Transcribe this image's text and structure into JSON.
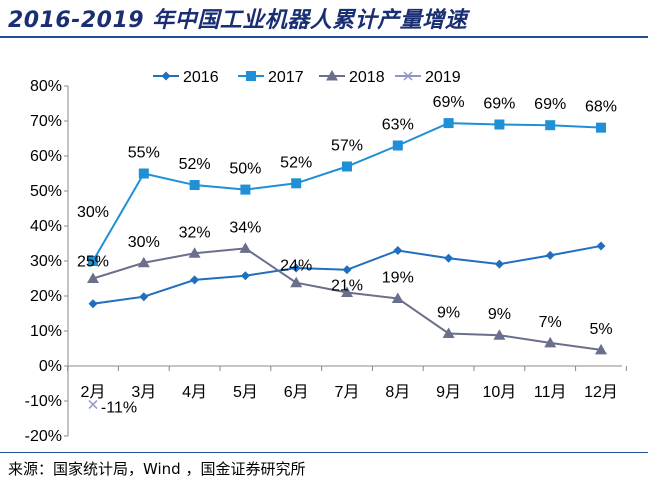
{
  "title": "2016-2019 年中国工业机器人累计产量增速",
  "source": "来源：国家统计局，Wind ，国金证券研究所",
  "chart_data": {
    "type": "line",
    "categories": [
      "2月",
      "3月",
      "4月",
      "5月",
      "6月",
      "7月",
      "8月",
      "9月",
      "10月",
      "11月",
      "12月"
    ],
    "ylim": [
      -20,
      80
    ],
    "yticks": [
      "80%",
      "70%",
      "60%",
      "50%",
      "40%",
      "30%",
      "20%",
      "10%",
      "0%",
      "-10%",
      "-20%"
    ],
    "ytick_values": [
      80,
      70,
      60,
      50,
      40,
      30,
      20,
      10,
      0,
      -10,
      -20
    ],
    "legend_position": "top",
    "grid": false,
    "series": [
      {
        "name": "2016",
        "color": "#1f6fbf",
        "marker": "diamond",
        "values": [
          17.8,
          19.8,
          24.6,
          25.8,
          28.0,
          27.5,
          33.0,
          30.8,
          29.1,
          31.6,
          34.3
        ],
        "labels": [
          null,
          null,
          null,
          null,
          null,
          null,
          null,
          null,
          null,
          null,
          null
        ]
      },
      {
        "name": "2017",
        "color": "#1f8fd6",
        "marker": "square",
        "values": [
          30,
          55,
          51.7,
          50.4,
          52.2,
          57,
          63,
          69.4,
          69,
          68.8,
          68.1
        ],
        "labels": [
          "30%",
          "55%",
          "52%",
          "50%",
          "52%",
          "57%",
          "63%",
          "69%",
          "69%",
          "69%",
          "68%"
        ]
      },
      {
        "name": "2018",
        "color": "#6a6f8c",
        "marker": "triangle",
        "values": [
          25,
          29.5,
          32.2,
          33.6,
          23.8,
          21,
          19.3,
          9.3,
          8.8,
          6.6,
          4.6
        ],
        "labels": [
          "25%",
          "30%",
          "32%",
          "34%",
          "24%",
          "21%",
          "19%",
          "9%",
          "9%",
          "7%",
          "5%"
        ]
      },
      {
        "name": "2019",
        "color": "#8f96c8",
        "marker": "x",
        "values": [
          -11,
          null,
          null,
          null,
          null,
          null,
          null,
          null,
          null,
          null,
          null
        ],
        "labels": [
          "-11%",
          null,
          null,
          null,
          null,
          null,
          null,
          null,
          null,
          null,
          null
        ]
      }
    ]
  }
}
